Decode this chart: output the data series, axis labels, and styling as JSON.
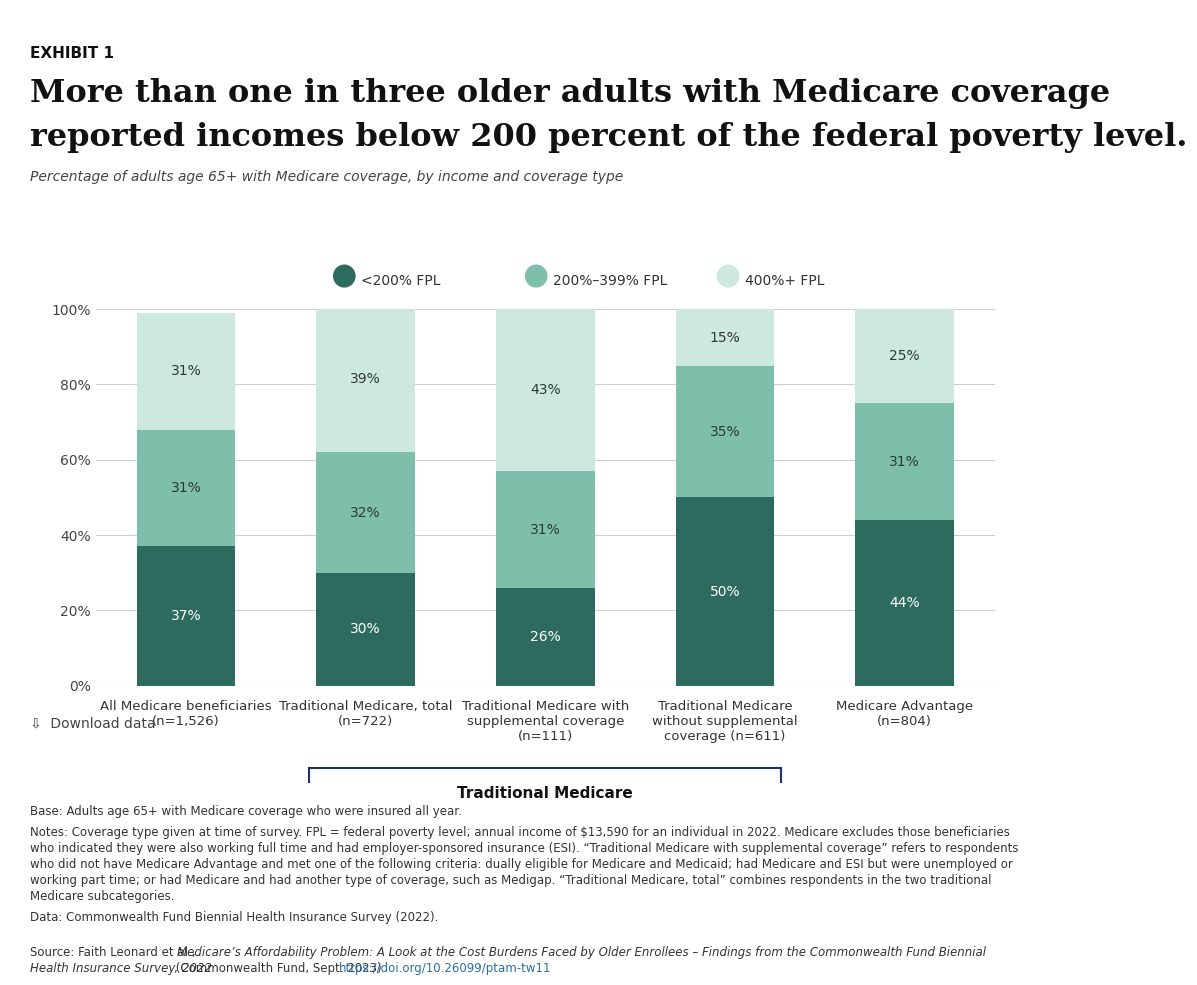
{
  "title_line1": "More than one in three older adults with Medicare coverage",
  "title_line2": "reported incomes below 200 percent of the federal poverty level.",
  "exhibit_label": "EXHIBIT 1",
  "subtitle": "Percentage of adults age 65+ with Medicare coverage, by income and coverage type",
  "categories": [
    "All Medicare beneficiaries\n(n=1,526)",
    "Traditional Medicare, total\n(n=722)",
    "Traditional Medicare with\nsupplemental coverage\n(n=111)",
    "Traditional Medicare\nwithout supplemental\ncoverage (n=611)",
    "Medicare Advantage\n(n=804)"
  ],
  "series": [
    {
      "label": "<200% FPL",
      "color": "#2d6b5e",
      "values": [
        37,
        30,
        26,
        50,
        44
      ]
    },
    {
      "label": "200%–399% FPL",
      "color": "#7dbfaa",
      "values": [
        31,
        32,
        31,
        35,
        31
      ]
    },
    {
      "label": "400%+ FPL",
      "color": "#cce8df",
      "values": [
        31,
        39,
        43,
        15,
        25
      ]
    }
  ],
  "ylim": [
    0,
    100
  ],
  "yticks": [
    0,
    20,
    40,
    60,
    80,
    100
  ],
  "ytick_labels": [
    "0%",
    "20%",
    "40%",
    "60%",
    "80%",
    "100%"
  ],
  "background_color": "#ffffff",
  "bar_width": 0.55,
  "traditional_medicare_bracket_label": "Traditional Medicare",
  "base_text": "Base: Adults age 65+ with Medicare coverage who were insured all year.",
  "notes_line1": "Notes: Coverage type given at time of survey. FPL = federal poverty level; annual income of $13,590 for an individual in 2022. Medicare excludes those beneficiaries",
  "notes_line2": "who indicated they were also working full time and had employer-sponsored insurance (ESI). “Traditional Medicare with supplemental coverage” refers to respondents",
  "notes_line3": "who did not have Medicare Advantage and met one of the following criteria: dually eligible for Medicare and Medicaid; had Medicare and ESI but were unemployed or",
  "notes_line4": "working part time; or had Medicare and had another type of coverage, such as Medigap. “Traditional Medicare, total” combines respondents in the two traditional",
  "notes_line5": "Medicare subcategories.",
  "data_text": "Data: Commonwealth Fund Biennial Health Insurance Survey (2022).",
  "source_line1_pre": "Source: Faith Leonard et al., ",
  "source_line1_italic": "Medicare’s Affordability Problem: A Look at the Cost Burdens Faced by Older Enrollees – Findings from the Commonwealth Fund Biennial",
  "source_line2_italic": "Health Insurance Survey, 2022",
  "source_line2_normal": " (Commonwealth Fund, Sept. 2023). ",
  "source_url": "https://doi.org/10.26099/ptam-tw11",
  "topbar_color": "#1c3557",
  "bracket_color": "#1c3557",
  "download_text": "Download data"
}
